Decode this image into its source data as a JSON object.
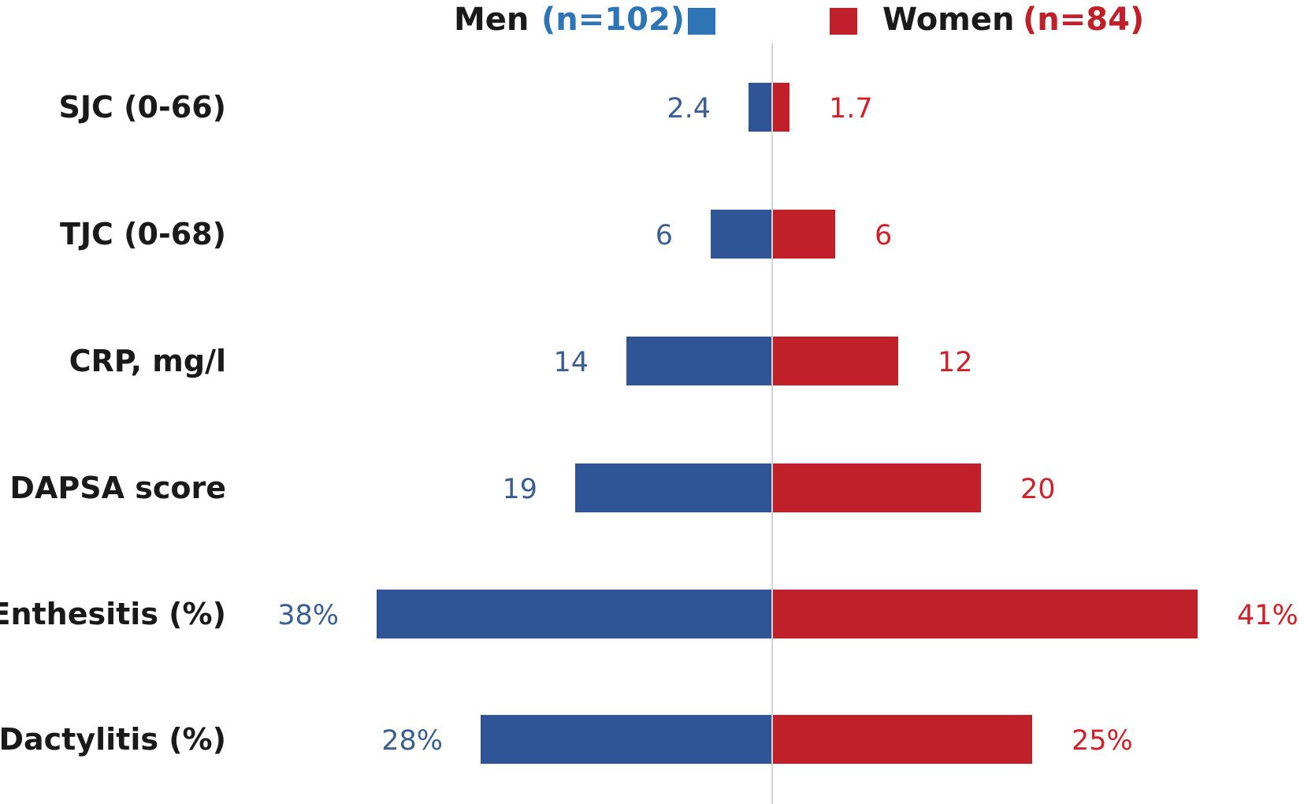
{
  "chart_data": {
    "type": "bar",
    "orientation": "horizontal-diverging",
    "categories": [
      "SJC (0-66)",
      "TJC (0-68)",
      "CRP, mg/l",
      "DAPSA score",
      "Enthesitis (%)",
      "Dactylitis (%)"
    ],
    "series": [
      {
        "name": "Men",
        "n_label": "(n=102)",
        "side": "left",
        "color": "#2f5597",
        "label_color": "#3a5f95",
        "legend_color": "#2e75b6",
        "values": [
          2.4,
          6,
          14,
          19,
          38,
          28
        ],
        "labels": [
          "2.4",
          "6",
          "14",
          "19",
          "38%",
          "28%"
        ]
      },
      {
        "name": "Women",
        "n_label": "(n=84)",
        "side": "right",
        "color": "#c0202a",
        "label_color": "#d0202a",
        "legend_color": "#c0202a",
        "values": [
          1.7,
          6,
          12,
          20,
          41,
          25
        ],
        "labels": [
          "1.7",
          "6",
          "12",
          "20",
          "41%",
          "25%"
        ]
      }
    ],
    "legend_position": "top-center",
    "grid": false,
    "center_axis": true
  }
}
